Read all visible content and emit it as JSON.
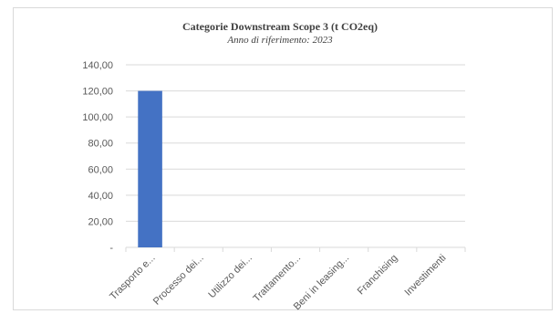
{
  "chart_data": {
    "type": "bar",
    "title": "Categorie Downstream Scope 3 (t CO2eq)",
    "subtitle": "Anno di riferimento: 2023",
    "categories": [
      "Trasporto e...",
      "Processo dei...",
      "Utilizzo dei...",
      "Trattamento...",
      "Beni in leasing...",
      "Franchising",
      "Investimenti"
    ],
    "values": [
      120,
      0,
      0,
      0,
      0,
      0,
      0
    ],
    "ylim": [
      0,
      140
    ],
    "yticks": [
      0,
      20,
      40,
      60,
      80,
      100,
      120,
      140
    ],
    "ytick_labels": [
      "-",
      "20,00",
      "40,00",
      "60,00",
      "80,00",
      "100,00",
      "120,00",
      "140,00"
    ],
    "grid": true,
    "bar_color": "#4472c4",
    "xlabel": "",
    "ylabel": ""
  }
}
